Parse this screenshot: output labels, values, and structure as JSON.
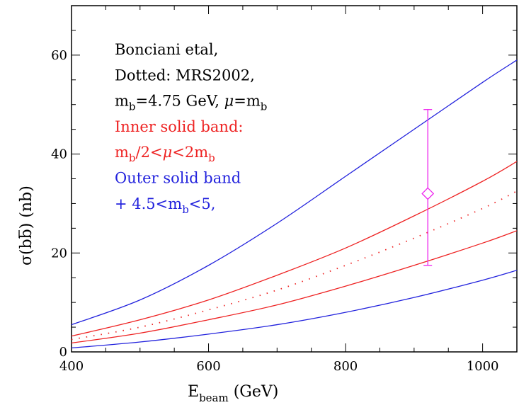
{
  "chart_data": {
    "type": "line",
    "xlabel_main": "E",
    "xlabel_sub": "beam",
    "xlabel_unit": " (GeV)",
    "ylabel_main": "σ(b",
    "ylabel_bbar": "b",
    "ylabel_unit": ") (nb)",
    "xlim": [
      400,
      1050
    ],
    "ylim": [
      0,
      70
    ],
    "x_ticks": [
      400,
      600,
      800,
      1000
    ],
    "y_ticks": [
      0,
      20,
      40,
      60
    ],
    "grid": false,
    "colors": {
      "blue": "#2222dd",
      "red": "#ee2222",
      "magenta": "#ee22ee",
      "black": "#000000"
    },
    "series": [
      {
        "style": "solid",
        "color": "blue",
        "x": [
          400,
          500,
          600,
          700,
          800,
          900,
          1000,
          1050
        ],
        "y": [
          5.5,
          10.5,
          17.5,
          26.0,
          35.5,
          45.0,
          54.5,
          59.0
        ]
      },
      {
        "style": "solid",
        "color": "red",
        "x": [
          400,
          500,
          600,
          700,
          800,
          900,
          1000,
          1050
        ],
        "y": [
          3.2,
          6.5,
          10.5,
          15.5,
          21.0,
          27.5,
          34.5,
          38.5
        ]
      },
      {
        "style": "dotted",
        "color": "red",
        "x": [
          400,
          500,
          600,
          700,
          800,
          900,
          1000,
          1050
        ],
        "y": [
          2.5,
          5.0,
          8.5,
          12.5,
          17.5,
          23.0,
          29.0,
          32.5
        ]
      },
      {
        "style": "solid",
        "color": "red",
        "x": [
          400,
          500,
          600,
          700,
          800,
          900,
          1000,
          1050
        ],
        "y": [
          1.8,
          3.8,
          6.5,
          9.5,
          13.3,
          17.5,
          22.0,
          24.5
        ]
      },
      {
        "style": "solid",
        "color": "blue",
        "x": [
          400,
          500,
          600,
          700,
          800,
          900,
          1000,
          1050
        ],
        "y": [
          0.8,
          2.0,
          3.6,
          5.5,
          8.0,
          11.0,
          14.5,
          16.5
        ]
      }
    ],
    "data_point": {
      "x": 920,
      "y": 32,
      "yerr_low": 17.5,
      "yerr_high": 49,
      "marker": "diamond",
      "color": "magenta"
    },
    "annotations": [
      {
        "color": "black",
        "parts": [
          {
            "t": "Bonciani etal,"
          }
        ]
      },
      {
        "color": "black",
        "parts": [
          {
            "t": "Dotted: MRS2002,"
          }
        ]
      },
      {
        "color": "black",
        "parts": [
          {
            "t": "m"
          },
          {
            "t": "b",
            "sub": true
          },
          {
            "t": "=4.75 GeV, "
          },
          {
            "t": "μ",
            "italic": true
          },
          {
            "t": "=m"
          },
          {
            "t": "b",
            "sub": true
          }
        ]
      },
      {
        "color": "red",
        "parts": [
          {
            "t": "Inner solid band:"
          }
        ]
      },
      {
        "color": "red",
        "parts": [
          {
            "t": "m"
          },
          {
            "t": "b",
            "sub": true
          },
          {
            "t": "/2<"
          },
          {
            "t": "μ",
            "italic": true
          },
          {
            "t": "<2m"
          },
          {
            "t": "b",
            "sub": true
          }
        ]
      },
      {
        "color": "blue",
        "parts": [
          {
            "t": "Outer solid band"
          }
        ]
      },
      {
        "color": "blue",
        "parts": [
          {
            "t": "+ 4.5<m"
          },
          {
            "t": "b",
            "sub": true
          },
          {
            "t": "<5,"
          }
        ]
      }
    ]
  }
}
